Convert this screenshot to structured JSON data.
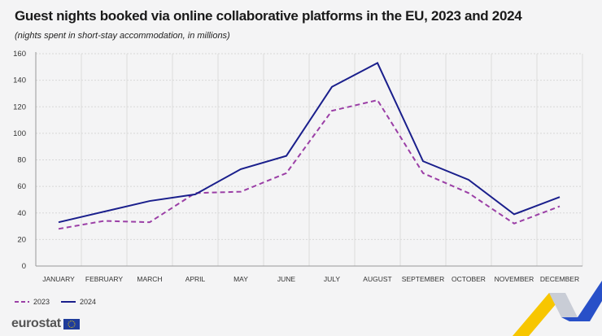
{
  "title": "Guest nights booked via online collaborative platforms in the EU, 2023 and 2024",
  "subtitle": "(nights spent in short-stay accommodation, in millions)",
  "brand": "eurostat",
  "chart_data": {
    "type": "line",
    "title": "Guest nights booked via online collaborative platforms in the EU, 2023 and 2024",
    "subtitle": "(nights spent in short-stay accommodation, in millions)",
    "categories": [
      "JANUARY",
      "FEBRUARY",
      "MARCH",
      "APRIL",
      "MAY",
      "JUNE",
      "JULY",
      "AUGUST",
      "SEPTEMBER",
      "OCTOBER",
      "NOVEMBER",
      "DECEMBER"
    ],
    "ylim": [
      0,
      160
    ],
    "yticks": [
      0,
      20,
      40,
      60,
      80,
      100,
      120,
      140,
      160
    ],
    "grid": true,
    "legend_position": "bottom-left",
    "series": [
      {
        "name": "2023",
        "color": "#9b3fa6",
        "style": "dashed",
        "values": [
          28,
          34,
          33,
          55,
          56,
          70,
          117,
          125,
          70,
          55,
          32,
          45
        ]
      },
      {
        "name": "2024",
        "color": "#1a1f8c",
        "style": "solid",
        "values": [
          33,
          41,
          49,
          54,
          73,
          83,
          135,
          153,
          79,
          65,
          39,
          52
        ]
      }
    ]
  }
}
